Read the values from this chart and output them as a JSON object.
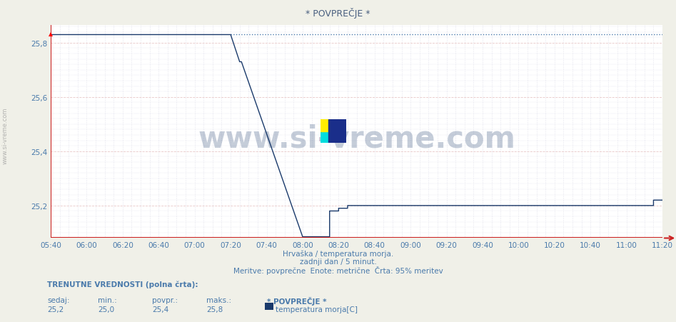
{
  "title": "* POVPREČJE *",
  "bg_color": "#f0f0e8",
  "plot_bg_color": "#ffffff",
  "line_color": "#1a3a6b",
  "dotted_line_color": "#4a7aab",
  "grid_color_major": "#e8c8c8",
  "grid_color_minor": "#d0d0e0",
  "axis_color": "#cc2222",
  "text_color": "#4a7aab",
  "title_color": "#4a6080",
  "ylim_min": 25.08,
  "ylim_max": 25.865,
  "yticks": [
    25.2,
    25.4,
    25.6,
    25.8
  ],
  "xlabel_times": [
    "05:40",
    "06:00",
    "06:20",
    "06:40",
    "07:00",
    "07:20",
    "07:40",
    "08:00",
    "08:20",
    "08:40",
    "09:00",
    "09:20",
    "09:40",
    "10:00",
    "10:20",
    "10:40",
    "11:00",
    "11:20"
  ],
  "watermark": "www.si-vreme.com",
  "watermark_color": "#1a3a6b",
  "subtitle1": "Hrvaška / temperatura morja.",
  "subtitle2": "zadnji dan / 5 minut.",
  "subtitle3": "Meritve: povprečne  Enote: metrične  Črta: 95% meritev",
  "legend_label": "TRENUTNE VREDNOSTI (polna črta):",
  "legend_sedaj": "sedaj:",
  "legend_min": "min.:",
  "legend_povpr": "povpr.:",
  "legend_maks": "maks.:",
  "legend_series": "* POVPREČJE *",
  "legend_unit": "temperatura morja[C]",
  "val_sedaj": "25,2",
  "val_min": "25,0",
  "val_povpr": "25,4",
  "val_maks": "25,8",
  "series_color": "#1a3a6b",
  "logo_yellow": "#ffee00",
  "logo_cyan": "#00dddd",
  "logo_blue": "#1a2e8a",
  "x_start_min": 340,
  "x_end_min": 680
}
